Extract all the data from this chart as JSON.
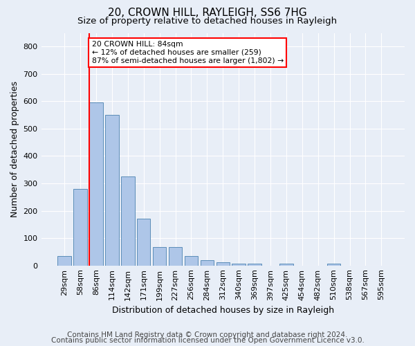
{
  "title1": "20, CROWN HILL, RAYLEIGH, SS6 7HG",
  "title2": "Size of property relative to detached houses in Rayleigh",
  "xlabel": "Distribution of detached houses by size in Rayleigh",
  "ylabel": "Number of detached properties",
  "categories": [
    "29sqm",
    "58sqm",
    "86sqm",
    "114sqm",
    "142sqm",
    "171sqm",
    "199sqm",
    "227sqm",
    "256sqm",
    "284sqm",
    "312sqm",
    "340sqm",
    "369sqm",
    "397sqm",
    "425sqm",
    "454sqm",
    "482sqm",
    "510sqm",
    "538sqm",
    "567sqm",
    "595sqm"
  ],
  "bar_heights": [
    35,
    280,
    595,
    550,
    325,
    170,
    68,
    68,
    35,
    20,
    12,
    8,
    8,
    0,
    8,
    0,
    0,
    8,
    0,
    0,
    0
  ],
  "bar_color": "#aec6e8",
  "bar_edge_color": "#5b8db8",
  "red_line_index": 2,
  "annotation_text": "20 CROWN HILL: 84sqm\n← 12% of detached houses are smaller (259)\n87% of semi-detached houses are larger (1,802) →",
  "annotation_box_color": "white",
  "annotation_box_edge_color": "red",
  "ylim": [
    0,
    850
  ],
  "yticks": [
    0,
    100,
    200,
    300,
    400,
    500,
    600,
    700,
    800
  ],
  "footer1": "Contains HM Land Registry data © Crown copyright and database right 2024.",
  "footer2": "Contains public sector information licensed under the Open Government Licence v3.0.",
  "bg_color": "#e8eef7",
  "plot_bg_color": "#e8eef7",
  "grid_color": "white",
  "title1_fontsize": 11,
  "title2_fontsize": 9.5,
  "xlabel_fontsize": 9,
  "ylabel_fontsize": 9,
  "tick_fontsize": 8,
  "footer_fontsize": 7.5,
  "bar_width": 0.85
}
